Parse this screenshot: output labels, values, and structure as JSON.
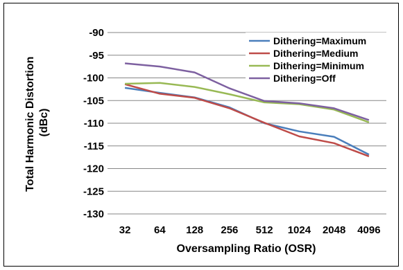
{
  "chart_data": {
    "type": "line",
    "title": "",
    "xlabel": "Oversampling Ratio (OSR)",
    "ylabel": "Total Harmonic Distortion (dBc)",
    "ylabel_lines": [
      "Total Harmonic Distortion",
      "(dBc)"
    ],
    "categories": [
      "32",
      "64",
      "128",
      "256",
      "512",
      "1024",
      "2048",
      "4096"
    ],
    "ylim": [
      -130,
      -90
    ],
    "yticks": [
      -90,
      -95,
      -100,
      -105,
      -110,
      -115,
      -120,
      -125,
      -130
    ],
    "ytick_labels": [
      "-90",
      "-95",
      "-100",
      "-105",
      "-110",
      "-115",
      "-120",
      "-125",
      "-130"
    ],
    "grid": true,
    "legend_position": "top-right",
    "series": [
      {
        "name": "Dithering=Maximum",
        "color": "#4a7ebb",
        "values": [
          -102.2,
          -103.3,
          -104.3,
          -106.5,
          -110.0,
          -111.8,
          -113.0,
          -116.9
        ]
      },
      {
        "name": "Dithering=Medium",
        "color": "#be4b48",
        "values": [
          -101.4,
          -103.5,
          -104.4,
          -106.7,
          -109.9,
          -112.9,
          -114.4,
          -117.3
        ]
      },
      {
        "name": "Dithering=Minimum",
        "color": "#98b954",
        "values": [
          -101.3,
          -101.1,
          -102.0,
          -103.6,
          -105.4,
          -105.8,
          -107.0,
          -109.8
        ]
      },
      {
        "name": "Dithering=Off",
        "color": "#7d60a0",
        "values": [
          -96.8,
          -97.5,
          -98.8,
          -102.3,
          -105.1,
          -105.6,
          -106.7,
          -109.3
        ]
      }
    ]
  }
}
